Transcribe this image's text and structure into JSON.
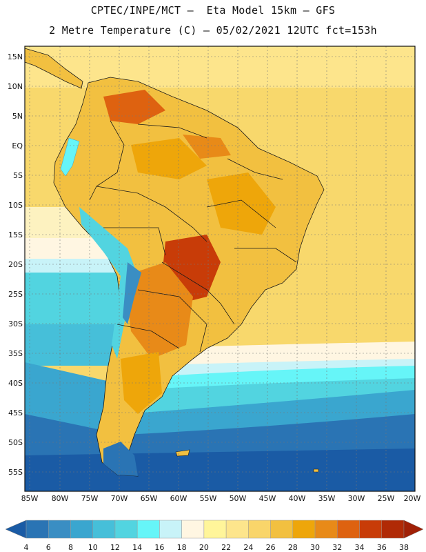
{
  "header": {
    "line1": "CPTEC/INPE/MCT –  Eta Model 15km – GFS",
    "line2": "2 Metre Temperature (C) – 05/02/2021 12UTC fct=153h"
  },
  "map": {
    "lat_labels": [
      "15N",
      "10N",
      "5N",
      "EQ",
      "5S",
      "10S",
      "15S",
      "20S",
      "25S",
      "30S",
      "35S",
      "40S",
      "45S",
      "50S",
      "55S"
    ],
    "lon_labels": [
      "85W",
      "80W",
      "75W",
      "70W",
      "65W",
      "60W",
      "55W",
      "50W",
      "45W",
      "40W",
      "35W",
      "30W",
      "25W",
      "20W"
    ],
    "region": "South America"
  },
  "legend": {
    "values": [
      "4",
      "6",
      "8",
      "10",
      "12",
      "14",
      "16",
      "18",
      "20",
      "22",
      "24",
      "26",
      "28",
      "30",
      "32",
      "34",
      "36",
      "38"
    ],
    "colors": [
      "#1a5ba5",
      "#2a74b4",
      "#3a8ec3",
      "#3aa6cf",
      "#46bfd9",
      "#52d4e0",
      "#66f5f8",
      "#c8f3f8",
      "#fff6e2",
      "#fff59a",
      "#fde58c",
      "#f9d56a",
      "#f2c040",
      "#eea60a",
      "#e88a18",
      "#de6210",
      "#c83c08",
      "#b02a06",
      "#a02006"
    ]
  }
}
